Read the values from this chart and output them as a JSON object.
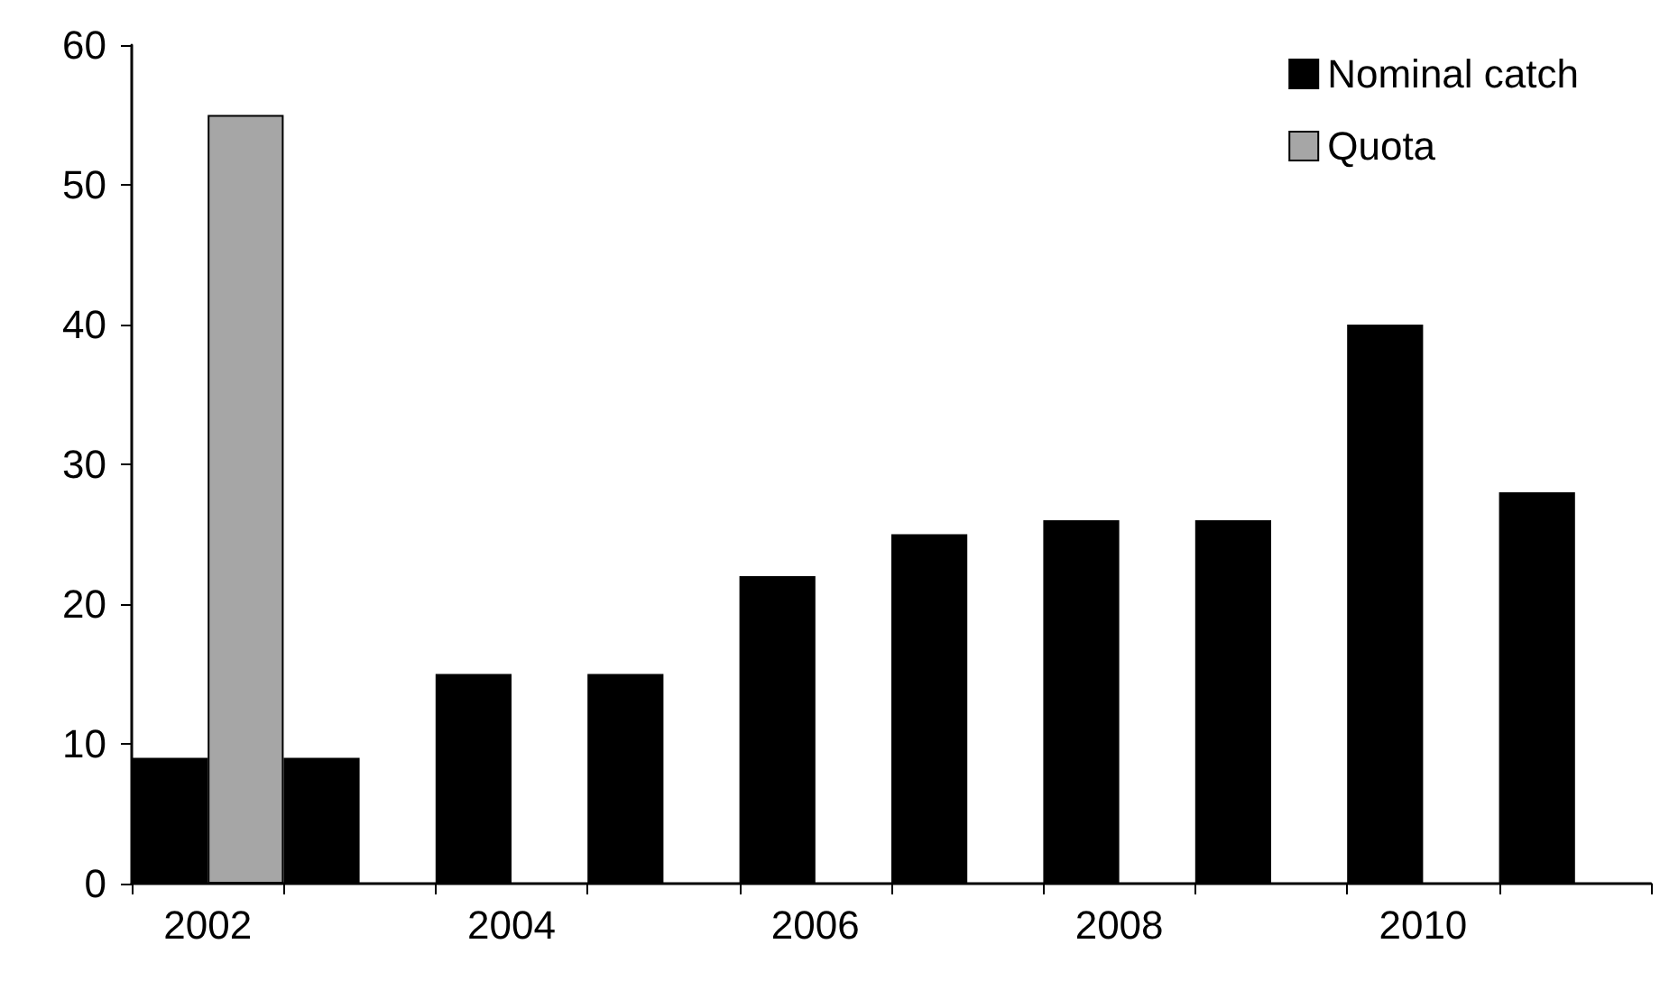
{
  "chart_data": {
    "type": "bar",
    "categories": [
      "2002",
      null,
      "2004",
      null,
      "2006",
      null,
      "2008",
      null,
      "2010",
      null
    ],
    "series": [
      {
        "name": "Nominal catch",
        "color": "#000000",
        "values": [
          9,
          9,
          15,
          15,
          22,
          25,
          26,
          26,
          40,
          28
        ]
      },
      {
        "name": "Quota",
        "color": "#a6a6a6",
        "values": [
          55,
          null,
          null,
          null,
          null,
          null,
          null,
          null,
          null,
          null
        ]
      }
    ],
    "ylim": [
      0,
      60
    ],
    "yticks": [
      0,
      10,
      20,
      30,
      40,
      50,
      60
    ],
    "grid": false,
    "legend": "top right"
  }
}
